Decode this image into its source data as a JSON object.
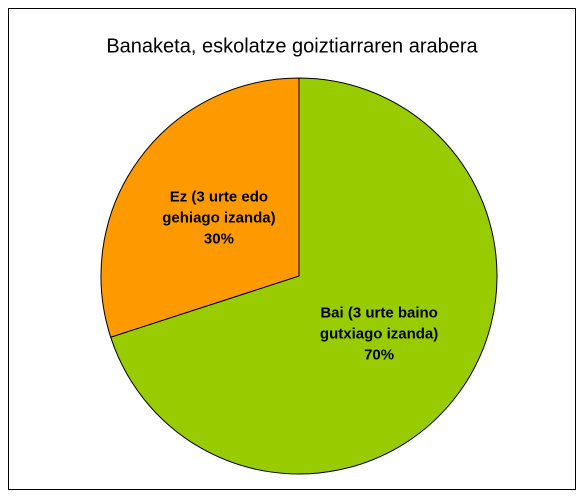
{
  "chart_data": {
    "type": "pie",
    "title": "Banaketa, eskolatze goiztiarraren arabera",
    "categories": [
      "Bai (3 urte baino gutxiago izanda)",
      "Ez (3 urte edo gehiago izanda)"
    ],
    "values": [
      70,
      30
    ],
    "value_labels": [
      "70%",
      "30%"
    ],
    "colors": [
      "#99cc00",
      "#ff9900"
    ]
  }
}
